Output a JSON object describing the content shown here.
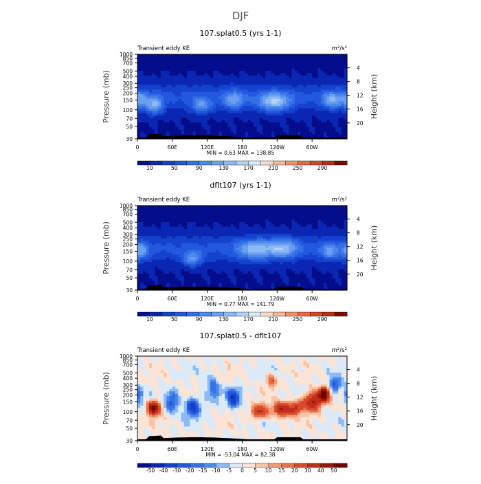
{
  "figure": {
    "title": "DJF"
  },
  "chart_data": [
    {
      "type": "heatmap",
      "title": "107.splat0.5 (yrs 1-1)",
      "left_label": "Transient eddy KE",
      "units": "m²/s²",
      "ylabel_left": "Pressure (mb)",
      "ylabel_right": "Height (km)",
      "x_ticks": [
        "0",
        "60E",
        "120E",
        "180",
        "120W",
        "60W"
      ],
      "x_tick_values": [
        0,
        60,
        120,
        180,
        240,
        300
      ],
      "xlim": [
        0,
        360
      ],
      "p_ticks": [
        "30",
        "50",
        "70",
        "100",
        "150",
        "200",
        "250",
        "300",
        "400",
        "500",
        "700",
        "850",
        "1000"
      ],
      "p_tick_values": [
        30,
        50,
        70,
        100,
        150,
        200,
        250,
        300,
        400,
        500,
        700,
        850,
        1000
      ],
      "h_ticks": [
        "20",
        "16",
        "12",
        "8",
        "4"
      ],
      "h_tick_values": [
        20,
        16,
        12,
        8,
        4
      ],
      "ylim_mb": [
        1000,
        30
      ],
      "stats": "MIN =    0.63   MAX = 138.85",
      "min": 0.63,
      "max": 138.85,
      "colorbar_labels": [
        "10",
        "50",
        "90",
        "130",
        "170",
        "210",
        "250",
        "290"
      ],
      "levels": [
        10,
        30,
        50,
        70,
        90,
        110,
        130,
        150,
        170,
        190,
        210,
        230,
        250,
        270,
        290
      ],
      "colors": [
        "#040d8c",
        "#0a27b3",
        "#1542cc",
        "#2258de",
        "#3670e6",
        "#4d88ec",
        "#6aa0f0",
        "#8cbaf4",
        "#b2d2f8",
        "#dceaf8",
        "#f7dccf",
        "#f4b89e",
        "#f0926c",
        "#e86a43",
        "#d8472a",
        "#bd2b1b",
        "#7a0a03"
      ],
      "features": [
        {
          "lon": 30,
          "p": 120,
          "amp": 100,
          "wlon": 14,
          "wlog": 0.16
        },
        {
          "lon": 110,
          "p": 120,
          "amp": 75,
          "wlon": 18,
          "wlog": 0.14
        },
        {
          "lon": 165,
          "p": 150,
          "amp": 78,
          "wlon": 18,
          "wlog": 0.16
        },
        {
          "lon": 235,
          "p": 140,
          "amp": 108,
          "wlon": 28,
          "wlog": 0.17
        },
        {
          "lon": 335,
          "p": 150,
          "amp": 88,
          "wlon": 18,
          "wlog": 0.15
        },
        {
          "lon": 5,
          "p": 150,
          "amp": 70,
          "wlon": 14,
          "wlog": 0.16
        }
      ]
    },
    {
      "type": "heatmap",
      "title": "dflt107 (yrs 1-1)",
      "left_label": "Transient eddy KE",
      "units": "m²/s²",
      "ylabel_left": "Pressure (mb)",
      "ylabel_right": "Height (km)",
      "x_ticks": [
        "0",
        "60E",
        "120E",
        "180",
        "120W",
        "60W"
      ],
      "x_tick_values": [
        0,
        60,
        120,
        180,
        240,
        300
      ],
      "xlim": [
        0,
        360
      ],
      "p_ticks": [
        "30",
        "50",
        "70",
        "100",
        "150",
        "200",
        "250",
        "300",
        "400",
        "500",
        "700",
        "850",
        "1000"
      ],
      "p_tick_values": [
        30,
        50,
        70,
        100,
        150,
        200,
        250,
        300,
        400,
        500,
        700,
        850,
        1000
      ],
      "h_ticks": [
        "20",
        "16",
        "12",
        "8",
        "4"
      ],
      "h_tick_values": [
        20,
        16,
        12,
        8,
        4
      ],
      "ylim_mb": [
        1000,
        30
      ],
      "stats": "MIN =    0.77   MAX = 141.79",
      "min": 0.77,
      "max": 141.79,
      "colorbar_labels": [
        "10",
        "50",
        "90",
        "130",
        "170",
        "210",
        "250",
        "290"
      ],
      "levels": [
        10,
        30,
        50,
        70,
        90,
        110,
        130,
        150,
        170,
        190,
        210,
        230,
        250,
        270,
        290
      ],
      "colors": [
        "#040d8c",
        "#0a27b3",
        "#1542cc",
        "#2258de",
        "#3670e6",
        "#4d88ec",
        "#6aa0f0",
        "#8cbaf4",
        "#b2d2f8",
        "#dceaf8",
        "#f7dccf",
        "#f4b89e",
        "#f0926c",
        "#e86a43",
        "#d8472a",
        "#bd2b1b",
        "#7a0a03"
      ],
      "features": [
        {
          "lon": 5,
          "p": 150,
          "amp": 78,
          "wlon": 14,
          "wlog": 0.16
        },
        {
          "lon": 95,
          "p": 110,
          "amp": 85,
          "wlon": 16,
          "wlog": 0.13
        },
        {
          "lon": 200,
          "p": 160,
          "amp": 90,
          "wlon": 30,
          "wlog": 0.18
        },
        {
          "lon": 250,
          "p": 170,
          "amp": 95,
          "wlon": 26,
          "wlog": 0.17
        },
        {
          "lon": 330,
          "p": 150,
          "amp": 72,
          "wlon": 16,
          "wlog": 0.15
        }
      ]
    },
    {
      "type": "heatmap",
      "title": "107.splat0.5 - dflt107",
      "left_label": "Transient eddy KE",
      "units": "m²/s²",
      "ylabel_left": "Pressure (mb)",
      "ylabel_right": "Height (km)",
      "x_ticks": [
        "0",
        "60E",
        "120E",
        "180",
        "120W",
        "60W"
      ],
      "x_tick_values": [
        0,
        60,
        120,
        180,
        240,
        300
      ],
      "xlim": [
        0,
        360
      ],
      "p_ticks": [
        "30",
        "50",
        "70",
        "100",
        "150",
        "200",
        "250",
        "300",
        "400",
        "500",
        "700",
        "850",
        "1000"
      ],
      "p_tick_values": [
        30,
        50,
        70,
        100,
        150,
        200,
        250,
        300,
        400,
        500,
        700,
        850,
        1000
      ],
      "h_ticks": [
        "20",
        "16",
        "12",
        "8",
        "4"
      ],
      "h_tick_values": [
        20,
        16,
        12,
        8,
        4
      ],
      "ylim_mb": [
        1000,
        30
      ],
      "stats": "MIN = -53.04   MAX =  82.38",
      "min": -53.04,
      "max": 82.38,
      "colorbar_labels": [
        "-50",
        "-40",
        "-30",
        "-20",
        "-15",
        "-10",
        "-5",
        "0",
        "5",
        "10",
        "15",
        "20",
        "30",
        "40",
        "50"
      ],
      "levels": [
        -50,
        -40,
        -30,
        -20,
        -15,
        -10,
        -5,
        0,
        5,
        10,
        15,
        20,
        30,
        40,
        50
      ],
      "colors": [
        "#040d8c",
        "#0a27b3",
        "#1542cc",
        "#2258de",
        "#3670e6",
        "#4d88ec",
        "#8cbaf4",
        "#dceaf8",
        "#fbe4d6",
        "#f7c4a8",
        "#f19a76",
        "#e8704a",
        "#d94a2b",
        "#c02d1b",
        "#9a1708",
        "#6e0602"
      ],
      "features": [
        {
          "lon": 28,
          "p": 115,
          "amp": 55,
          "wlon": 10,
          "wlog": 0.13
        },
        {
          "lon": 60,
          "p": 150,
          "amp": -25,
          "wlon": 10,
          "wlog": 0.18
        },
        {
          "lon": 95,
          "p": 120,
          "amp": -35,
          "wlon": 12,
          "wlog": 0.16
        },
        {
          "lon": 165,
          "p": 180,
          "amp": -38,
          "wlon": 10,
          "wlog": 0.15
        },
        {
          "lon": 210,
          "p": 100,
          "amp": 35,
          "wlon": 14,
          "wlog": 0.12
        },
        {
          "lon": 250,
          "p": 110,
          "amp": 40,
          "wlon": 18,
          "wlog": 0.13
        },
        {
          "lon": 300,
          "p": 150,
          "amp": 45,
          "wlon": 14,
          "wlog": 0.17
        },
        {
          "lon": 320,
          "p": 200,
          "amp": 70,
          "wlon": 9,
          "wlog": 0.12
        },
        {
          "lon": 275,
          "p": 120,
          "amp": 30,
          "wlon": 10,
          "wlog": 0.12
        },
        {
          "lon": 230,
          "p": 350,
          "amp": 20,
          "wlon": 10,
          "wlog": 0.12
        },
        {
          "lon": 340,
          "p": 300,
          "amp": -25,
          "wlon": 9,
          "wlog": 0.14
        },
        {
          "lon": 130,
          "p": 250,
          "amp": -18,
          "wlon": 12,
          "wlog": 0.2
        },
        {
          "lon": 2,
          "p": 200,
          "amp": -18,
          "wlon": 8,
          "wlog": 0.15
        }
      ]
    }
  ]
}
